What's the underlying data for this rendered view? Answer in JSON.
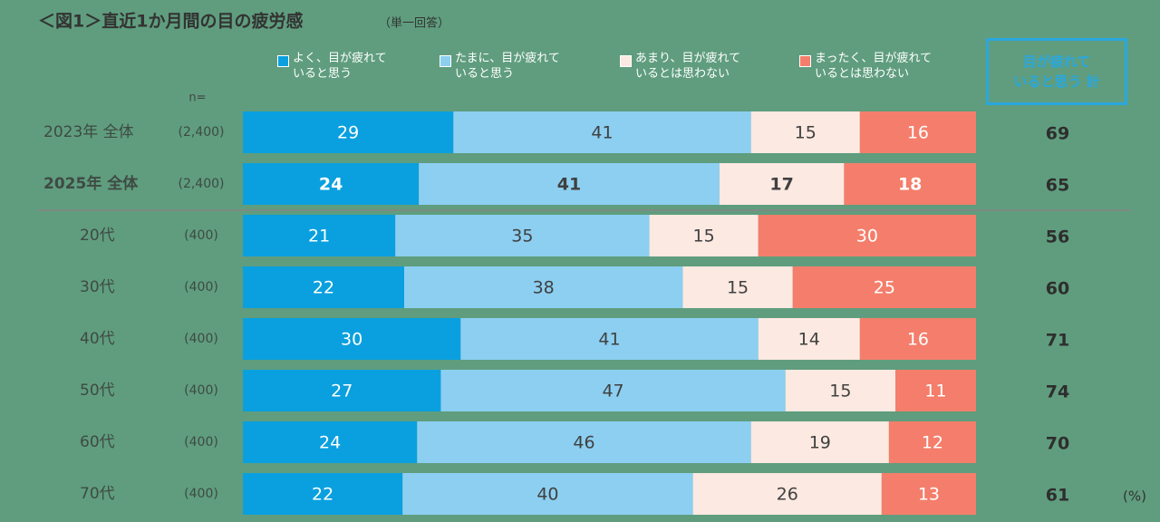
{
  "chart_data": {
    "type": "stacked-bar-horizontal",
    "title": "＜図1＞直近1か月間の目の疲労感",
    "subtitle": "（単一回答）",
    "n_header": "n=",
    "unit": "(%)",
    "categories": [
      "2023年 全体",
      "2025年 全体",
      "20代",
      "30代",
      "40代",
      "50代",
      "60代",
      "70代"
    ],
    "n_labels": [
      "(2,400)",
      "(2,400)",
      "(400)",
      "(400)",
      "(400)",
      "(400)",
      "(400)",
      "(400)"
    ],
    "emphasis_rows": [
      1
    ],
    "series": [
      {
        "name": "よく、目が疲れて\nいると思う",
        "color": "#0aa0df",
        "label_color": "#ffffff",
        "values": [
          29,
          24,
          21,
          22,
          30,
          27,
          24,
          22
        ]
      },
      {
        "name": "たまに、目が疲れて\nいると思う",
        "color": "#8ccff1",
        "label_color": "#404040",
        "values": [
          41,
          41,
          35,
          38,
          41,
          47,
          46,
          40
        ]
      },
      {
        "name": "あまり、目が疲れて\nいるとは思わない",
        "color": "#fce9e1",
        "label_color": "#404040",
        "values": [
          15,
          17,
          15,
          15,
          14,
          15,
          19,
          26
        ]
      },
      {
        "name": "まったく、目が疲れて\nいるとは思わない",
        "color": "#f47e6b",
        "label_color": "#ffffff",
        "values": [
          16,
          18,
          30,
          25,
          16,
          11,
          12,
          13
        ]
      }
    ],
    "totals": {
      "name": "目が疲れて\nいると思う 計",
      "values": [
        69,
        65,
        56,
        60,
        71,
        74,
        70,
        61
      ]
    }
  }
}
